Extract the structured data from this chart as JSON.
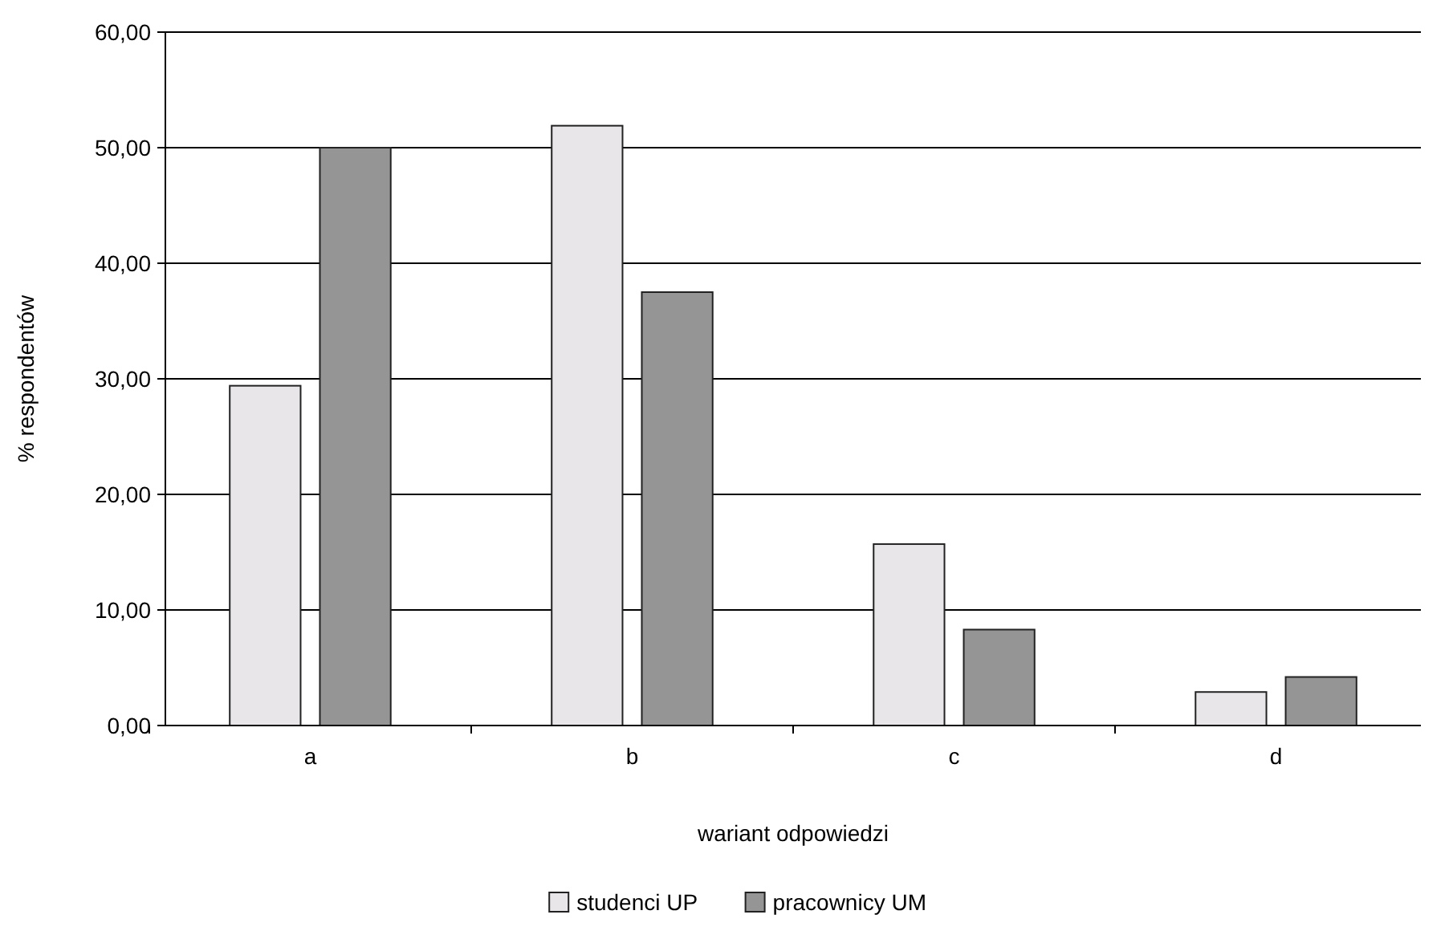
{
  "chart_data": {
    "type": "bar",
    "xlabel": "wariant odpowiedzi",
    "ylabel": "% respondentów",
    "categories": [
      "a",
      "b",
      "c",
      "d"
    ],
    "series": [
      {
        "name": "studenci UP",
        "color": "#e8e6e9",
        "values": [
          29.4,
          51.9,
          15.7,
          2.9
        ]
      },
      {
        "name": "pracownicy UM",
        "color": "#959595",
        "values": [
          50.0,
          37.5,
          8.3,
          4.2
        ]
      }
    ],
    "ylim": [
      0,
      60
    ],
    "yticks": [
      {
        "value": 0,
        "label": "0,00"
      },
      {
        "value": 10,
        "label": "10,00"
      },
      {
        "value": 20,
        "label": "20,00"
      },
      {
        "value": 30,
        "label": "30,00"
      },
      {
        "value": 40,
        "label": "40,00"
      },
      {
        "value": 50,
        "label": "50,00"
      },
      {
        "value": 60,
        "label": "60,00"
      }
    ],
    "grid": "y",
    "legend": "bottom"
  }
}
